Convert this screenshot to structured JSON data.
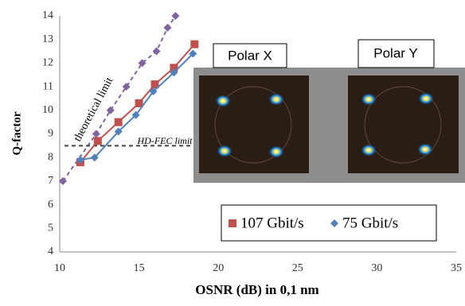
{
  "chart_data": {
    "type": "line",
    "x_label": "OSNR (dB) in  0,1 nm",
    "y_label": "Q-factor",
    "xlim": [
      10,
      35
    ],
    "xticks": [
      10,
      15,
      20,
      25,
      30,
      35
    ],
    "x_minor_grid": 1,
    "ylim": [
      4,
      14
    ],
    "yticks": [
      4,
      5,
      6,
      7,
      8,
      9,
      10,
      11,
      12,
      13,
      14
    ],
    "grid": true,
    "series": [
      {
        "name": "107 Gbit/s",
        "color": "#c0504d",
        "marker": "square",
        "x": [
          11.3,
          12.4,
          13.7,
          15.0,
          16.0,
          17.2,
          18.5
        ],
        "values": [
          7.8,
          8.7,
          9.5,
          10.3,
          11.1,
          11.8,
          12.8
        ]
      },
      {
        "name": "75 Gbit/s",
        "color": "#4f81bd",
        "marker": "diamond",
        "x": [
          11.3,
          12.2,
          13.7,
          14.8,
          15.9,
          17.2,
          18.4
        ],
        "values": [
          7.9,
          8.0,
          9.1,
          9.8,
          10.8,
          11.6,
          12.4
        ]
      }
    ],
    "reference_lines": [
      {
        "label": "theoretical limit",
        "color": "#8064a2",
        "marker": "diamond",
        "x": [
          10.2,
          12.3,
          13.2,
          14.2,
          15.2,
          16.1,
          16.8,
          17.3
        ],
        "values": [
          7.0,
          9.0,
          10.0,
          11.0,
          12.0,
          12.5,
          13.5,
          14.0
        ]
      },
      {
        "label": "HD-FEC limit",
        "color": "#444444",
        "marker": "none",
        "x": [
          10.3,
          19.2
        ],
        "values": [
          8.5,
          8.5
        ]
      }
    ]
  },
  "insets": [
    "Polar X",
    "Polar Y"
  ]
}
